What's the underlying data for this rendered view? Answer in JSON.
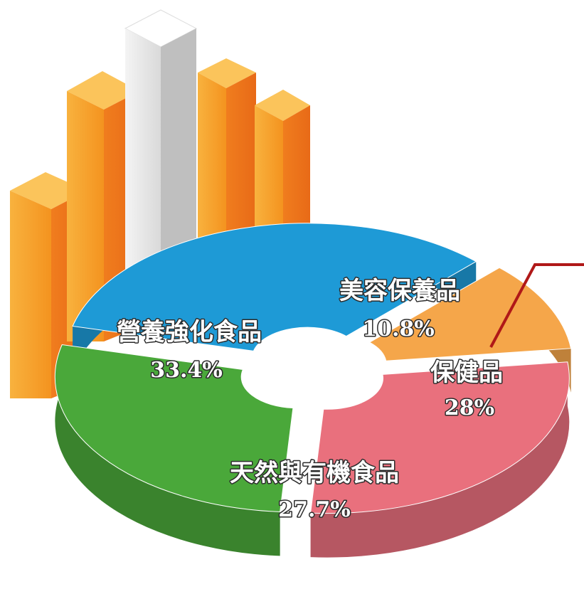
{
  "header": {
    "title_fragment": ""
  },
  "chart_data": {
    "type": "pie",
    "title": "",
    "categories": [
      "營養強化食品",
      "美容保養品",
      "保健品",
      "天然與有機食品"
    ],
    "values": [
      33.4,
      10.8,
      28,
      27.7
    ],
    "labels_percent": [
      "33.4%",
      "10.8%",
      "28%",
      "27.7%"
    ],
    "colors": [
      "#1e9ad6",
      "#f5a64a",
      "#e9707d",
      "#4aa83a"
    ],
    "style": "3d-donut-exploded",
    "legend": "none (labels on slices)"
  },
  "decor": {
    "bar_colors": [
      "#f59a25",
      "#c9c9c9"
    ],
    "pointer_color": "#b01818"
  }
}
